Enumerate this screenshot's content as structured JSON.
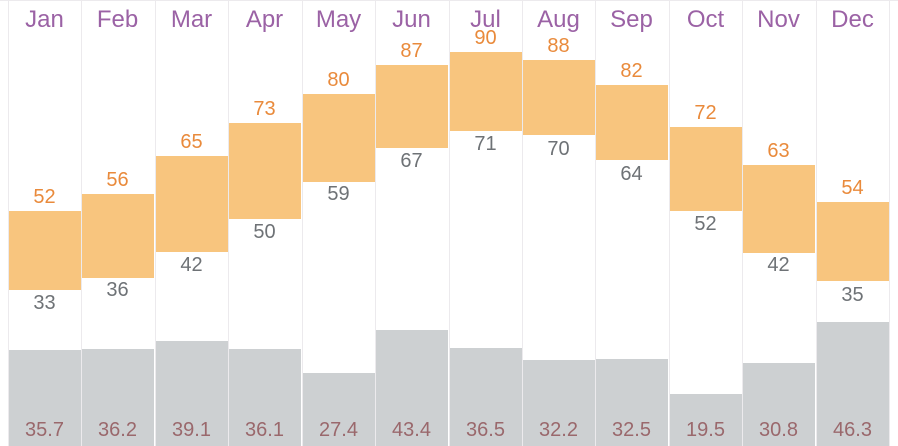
{
  "chart_data": {
    "type": "bar",
    "subtype": "climate-range-and-precipitation",
    "title": "",
    "xlabel": "",
    "ylabel": "",
    "legend": "none",
    "grid": "vertical column separators only",
    "categories": [
      "Jan",
      "Feb",
      "Mar",
      "Apr",
      "May",
      "Jun",
      "Jul",
      "Aug",
      "Sep",
      "Oct",
      "Nov",
      "Dec"
    ],
    "series": [
      {
        "name": "high-temperature",
        "values": [
          52,
          56,
          65,
          73,
          80,
          87,
          90,
          88,
          82,
          72,
          63,
          54
        ]
      },
      {
        "name": "low-temperature",
        "values": [
          33,
          36,
          42,
          50,
          59,
          67,
          71,
          70,
          64,
          52,
          42,
          35
        ]
      },
      {
        "name": "precipitation",
        "values": [
          35.7,
          36.2,
          39.1,
          36.1,
          27.4,
          43.4,
          36.5,
          32.2,
          32.5,
          19.5,
          30.8,
          46.3
        ]
      }
    ],
    "temp_shown_range": [
      33,
      90
    ]
  },
  "colors": {
    "background": "#ffffff",
    "month_label": "#9B62A5",
    "high_value_label": "#E98A3B",
    "temp_bar": "#F8C57E",
    "low_value_label": "#6E7276",
    "precip_bar": "#CDD0D2",
    "precip_value_label": "#9A686C",
    "separator": "#ECEAED"
  }
}
